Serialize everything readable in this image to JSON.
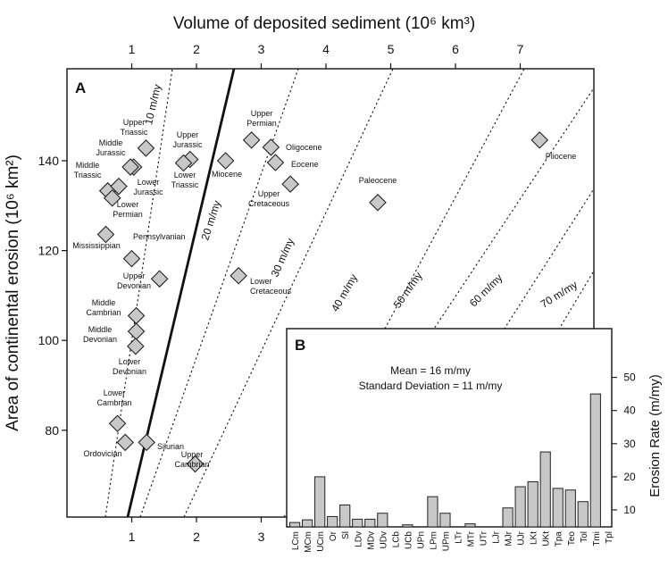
{
  "chart_data": [
    {
      "panel": "A",
      "type": "scatter",
      "xlabel": "Volume of deposited sediment (10⁶ km³)",
      "ylabel": "Area of continental erosion (10⁶ km²)",
      "xlim": [
        0,
        7.7
      ],
      "ylim": [
        60,
        150
      ],
      "x_ticks_top": [
        "1",
        "2",
        "3",
        "4",
        "5",
        "6",
        "7"
      ],
      "x_ticks_bottom": [
        "1",
        "2",
        "3"
      ],
      "y_ticks": [
        "80",
        "100",
        "120",
        "140"
      ],
      "points": [
        {
          "name": "Upper Triassic",
          "x": 1.22,
          "y": 142.8
        },
        {
          "name": "Middle Jurassic",
          "x": 1.03,
          "y": 138.6
        },
        {
          "name": "Middle Triassic",
          "x": 0.63,
          "y": 133.3
        },
        {
          "name": "",
          "x": 0.8,
          "y": 134.3
        },
        {
          "name": "Lower Permian",
          "x": 0.7,
          "y": 131.7
        },
        {
          "name": "Mississippian",
          "x": 0.6,
          "y": 123.6
        },
        {
          "name": "Pennsylvanian",
          "x": 1.0,
          "y": 118.2
        },
        {
          "name": "Upper Devonian",
          "x": 1.43,
          "y": 113.7
        },
        {
          "name": "Middle Cambrian",
          "x": 1.07,
          "y": 105.5
        },
        {
          "name": "Middle Devonian",
          "x": 1.07,
          "y": 102.0
        },
        {
          "name": "Lower Devonian",
          "x": 1.06,
          "y": 98.7
        },
        {
          "name": "Lower Cambrian",
          "x": 0.78,
          "y": 81.5
        },
        {
          "name": "Ordovician",
          "x": 0.9,
          "y": 77.3
        },
        {
          "name": "Silurian",
          "x": 1.23,
          "y": 77.3
        },
        {
          "name": "Upper Cambrian",
          "x": 1.98,
          "y": 72.5
        },
        {
          "name": "Upper Jurassic",
          "x": 1.9,
          "y": 140.3
        },
        {
          "name": "Lower Triassic",
          "x": 1.8,
          "y": 139.5
        },
        {
          "name": "Lower Jurassic",
          "x": 0.98,
          "y": 138.6
        },
        {
          "name": "Miocene",
          "x": 2.45,
          "y": 140.0
        },
        {
          "name": "Upper Permian",
          "x": 2.85,
          "y": 144.6
        },
        {
          "name": "Oligocene",
          "x": 3.15,
          "y": 143.0
        },
        {
          "name": "Eocene",
          "x": 3.22,
          "y": 139.6
        },
        {
          "name": "Upper Cretaceous",
          "x": 3.45,
          "y": 134.8
        },
        {
          "name": "Lower Cretaceous",
          "x": 2.65,
          "y": 114.4
        },
        {
          "name": "Paleocene",
          "x": 4.8,
          "y": 130.7
        },
        {
          "name": "Pliocene",
          "x": 7.3,
          "y": 144.6
        }
      ],
      "rate_lines": [
        {
          "label": "10 m/my",
          "style": "dotted"
        },
        {
          "label": "",
          "style": "solid",
          "note": "mean"
        },
        {
          "label": "20 m/my",
          "style": "dotted"
        },
        {
          "label": "30 m/my",
          "style": "dotted"
        },
        {
          "label": "40 m/my",
          "style": "dotted"
        },
        {
          "label": "50 m/my",
          "style": "dotted"
        },
        {
          "label": "60 m/my",
          "style": "dotted"
        },
        {
          "label": "70 m/my",
          "style": "dotted"
        }
      ]
    },
    {
      "panel": "B",
      "type": "bar",
      "ylabel": "Erosion Rate (m/my)",
      "ylim": [
        0,
        58
      ],
      "y_ticks": [
        "10",
        "20",
        "30",
        "40",
        "50"
      ],
      "annotation_mean": "Mean = 16 m/my",
      "annotation_sd": "Standard Deviation = 11 m/my",
      "categories": [
        "LCm",
        "MCm",
        "UCm",
        "Or",
        "Sl",
        "LDv",
        "MDv",
        "UDv",
        "LCb",
        "UCb",
        "UPn",
        "LPm",
        "UPm",
        "LTr",
        "MTr",
        "UTr",
        "LJr",
        "MJr",
        "UJr",
        "LKt",
        "UKt",
        "Tpa",
        "Teo",
        "Tol",
        "Tmi",
        "Tpl"
      ],
      "values": [
        6.2,
        7,
        20,
        8,
        11.5,
        7.2,
        7.2,
        9,
        2.7,
        5.5,
        3.2,
        14,
        9,
        2.5,
        5.8,
        3.8,
        4.5,
        10.6,
        17,
        18.5,
        27.5,
        16.5,
        16,
        12.5,
        45,
        0
      ]
    }
  ],
  "panel_labels": {
    "a": "A",
    "b": "B"
  }
}
